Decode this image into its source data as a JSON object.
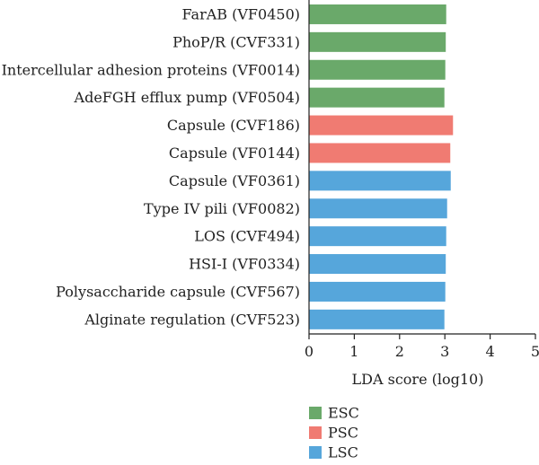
{
  "chart_data": {
    "type": "bar",
    "orientation": "horizontal",
    "xlabel": "LDA score (log10)",
    "xlim": [
      0,
      5
    ],
    "xticks": [
      "0",
      "1",
      "2",
      "3",
      "4",
      "5"
    ],
    "grid": false,
    "legend_placement": "bottom",
    "categories": [
      "FarAB (VF0450)",
      "PhoP/R (CVF331)",
      "Intercellular adhesion proteins (VF0014)",
      "AdeFGH efflux pump (VF0504)",
      "Capsule (CVF186)",
      "Capsule (VF0144)",
      "Capsule (VF0361)",
      "Type IV pili (VF0082)",
      "LOS (CVF494)",
      "HSI-I (VF0334)",
      "Polysaccharide capsule (CVF567)",
      "Alginate regulation (CVF523)"
    ],
    "values": [
      3.03,
      3.02,
      3.01,
      2.99,
      3.18,
      3.12,
      3.13,
      3.05,
      3.03,
      3.02,
      3.01,
      2.99
    ],
    "groups": [
      "ESC",
      "ESC",
      "ESC",
      "ESC",
      "PSC",
      "PSC",
      "LSC",
      "LSC",
      "LSC",
      "LSC",
      "LSC",
      "LSC"
    ],
    "legend": [
      {
        "name": "ESC",
        "color": "#6aa96a"
      },
      {
        "name": "PSC",
        "color": "#f07b72"
      },
      {
        "name": "LSC",
        "color": "#56a6db"
      }
    ]
  }
}
